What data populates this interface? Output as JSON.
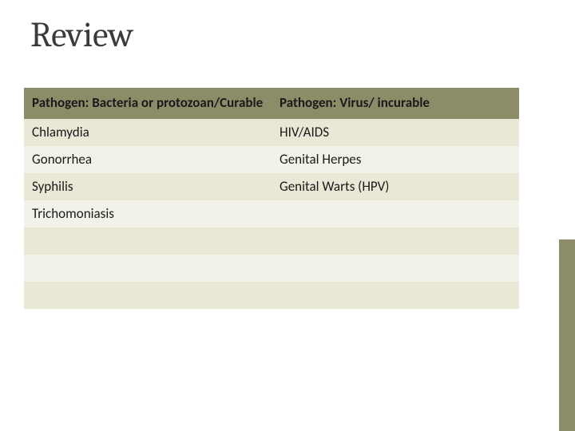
{
  "title": "Review",
  "table": {
    "header_bg": "#8d8c68",
    "row_a_bg": "#e9e7d6",
    "row_b_bg": "#f3f2e9",
    "columns": [
      "Pathogen: Bacteria or protozoan/Curable",
      "Pathogen: Virus/ incurable"
    ],
    "rows": [
      [
        "Chlamydia",
        "HIV/AIDS"
      ],
      [
        "Gonorrhea",
        "Genital Herpes"
      ],
      [
        "Syphilis",
        "Genital Warts (HPV)"
      ],
      [
        "Trichomoniasis",
        ""
      ],
      [
        "",
        ""
      ],
      [
        "",
        ""
      ],
      [
        "",
        ""
      ]
    ]
  },
  "accent_color": "#8d8c68"
}
